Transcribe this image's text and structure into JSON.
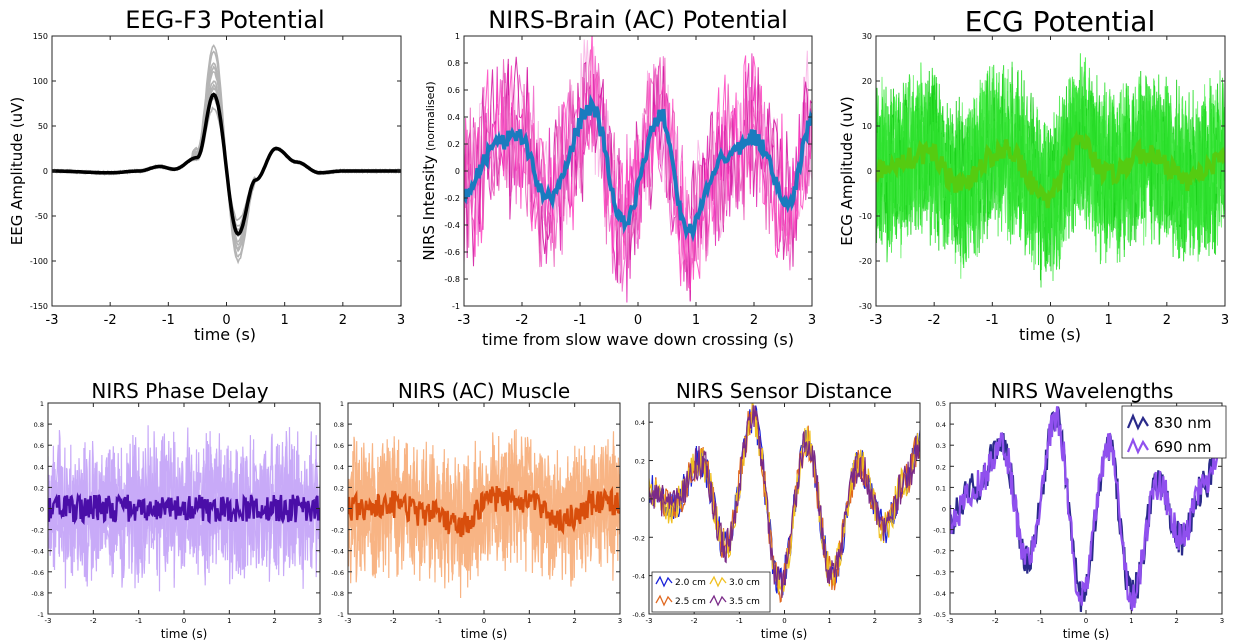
{
  "chart_data": [
    {
      "id": "eeg",
      "type": "line",
      "title": "EEG-F3 Potential",
      "xlabel": "time (s)",
      "ylabel": "EEG Amplitude (uV)",
      "xlim": [
        -3,
        3
      ],
      "ylim": [
        -150,
        150
      ],
      "xticks": [
        -3,
        -2,
        -1,
        0,
        1,
        2,
        3
      ],
      "yticks": [
        -150,
        -100,
        -50,
        0,
        50,
        100,
        150
      ],
      "grid": false,
      "colors": {
        "trials": "#b4b4b4",
        "mean": "#000000"
      },
      "trial_peaks": [
        {
          "pos": 70,
          "neg": -55
        },
        {
          "pos": 80,
          "neg": -62
        },
        {
          "pos": 92,
          "neg": -72
        },
        {
          "pos": 100,
          "neg": -78
        },
        {
          "pos": 110,
          "neg": -82
        },
        {
          "pos": 120,
          "neg": -88
        },
        {
          "pos": 132,
          "neg": -95
        },
        {
          "pos": 140,
          "neg": -100
        },
        {
          "pos": 95,
          "neg": -66
        },
        {
          "pos": 115,
          "neg": -85
        }
      ],
      "mean_keypoints": {
        "x": [
          -3,
          -2,
          -1.5,
          -1.15,
          -0.9,
          -0.5,
          -0.22,
          0.2,
          0.5,
          0.85,
          1.2,
          1.6,
          2.0,
          3
        ],
        "y": [
          0,
          -2,
          0,
          5,
          2,
          15,
          85,
          -70,
          -10,
          25,
          10,
          -2,
          0,
          0
        ]
      }
    },
    {
      "id": "nirs_brain",
      "type": "line",
      "title": "NIRS-Brain (AC) Potential",
      "xlabel": "time from slow wave down crossing (s)",
      "ylabel": "NIRS Intensity",
      "ylabel_suffix": "(normalised)",
      "xlim": [
        -3,
        3
      ],
      "ylim": [
        -1,
        1
      ],
      "xticks": [
        -3,
        -2,
        -1,
        0,
        1,
        2,
        3
      ],
      "yticks": [
        -1,
        -0.8,
        -0.6,
        -0.4,
        -0.2,
        0,
        0.2,
        0.4,
        0.6,
        0.8,
        1
      ],
      "grid": false,
      "colors": {
        "trials": [
          "#f060c8",
          "#e020b0",
          "#f8b0e4",
          "#d0109c",
          "#ff40c0",
          "#ea5ab8"
        ],
        "mean": "#1a7bbf"
      },
      "mean_keypoints": {
        "x": [
          -3,
          -2.4,
          -2.1,
          -1.55,
          -0.8,
          -0.25,
          0.4,
          0.85,
          1.5,
          2.0,
          2.6,
          3
        ],
        "y": [
          -0.15,
          0.2,
          0.28,
          -0.2,
          0.47,
          -0.38,
          0.42,
          -0.45,
          0.1,
          0.25,
          -0.25,
          0.38
        ]
      }
    },
    {
      "id": "ecg",
      "type": "line",
      "title": "ECG Potential",
      "xlabel": "time (s)",
      "ylabel": "ECG Amplitude (uV)",
      "xlim": [
        -3,
        3
      ],
      "ylim": [
        -30,
        30
      ],
      "xticks": [
        -3,
        -2,
        -1,
        0,
        1,
        2,
        3
      ],
      "yticks": [
        -30,
        -20,
        -10,
        0,
        10,
        20,
        30
      ],
      "grid": false,
      "colors": {
        "trials": [
          "#33ee33",
          "#22dd22",
          "#66f266",
          "#11cc11",
          "#44e844",
          "#2be02b"
        ],
        "mean": "#55cc11"
      },
      "mean_keypoints": {
        "x": [
          -3,
          -2.1,
          -1.6,
          -0.8,
          -0.05,
          0.5,
          1.0,
          1.6,
          2.4,
          3
        ],
        "y": [
          0,
          4,
          -3,
          5,
          -6,
          6,
          -1,
          4,
          -2,
          2
        ]
      }
    },
    {
      "id": "phase",
      "type": "line",
      "title": "NIRS Phase Delay",
      "xlabel": "time (s)",
      "ylabel": "",
      "xlim": [
        -3,
        3
      ],
      "ylim": [
        -1,
        1
      ],
      "xticks": [
        -3,
        -2,
        -1,
        0,
        1,
        2,
        3
      ],
      "yticks": [
        -1,
        -0.8,
        -0.6,
        -0.4,
        -0.2,
        0,
        0.2,
        0.4,
        0.6,
        0.8,
        1
      ],
      "grid": false,
      "colors": {
        "band": "#c8aaf8",
        "mean": "#4a0ea8"
      },
      "band_amplitude": 0.55,
      "mean_keypoints": {
        "x": [
          -3,
          3
        ],
        "y": [
          0,
          0
        ]
      }
    },
    {
      "id": "muscle",
      "type": "line",
      "title": "NIRS (AC) Muscle",
      "xlabel": "time (s)",
      "ylabel": "",
      "xlim": [
        -3,
        3
      ],
      "ylim": [
        -1,
        1
      ],
      "xticks": [
        -3,
        -2,
        -1,
        0,
        1,
        2,
        3
      ],
      "yticks": [
        -1,
        -0.8,
        -0.6,
        -0.4,
        -0.2,
        0,
        0.2,
        0.4,
        0.6,
        0.8,
        1
      ],
      "grid": false,
      "colors": {
        "band": "#f8b484",
        "mean": "#d84e0c"
      },
      "band_amplitude": 0.5,
      "mean_keypoints": {
        "x": [
          -3,
          -2.2,
          -1.2,
          -0.5,
          0.2,
          1.0,
          1.8,
          2.4,
          3
        ],
        "y": [
          0,
          0.05,
          -0.05,
          -0.15,
          0.1,
          0.05,
          -0.1,
          0.05,
          0.05
        ]
      }
    },
    {
      "id": "distance",
      "type": "line",
      "title": "NIRS Sensor Distance",
      "xlabel": "time (s)",
      "ylabel": "",
      "xlim": [
        -3,
        3
      ],
      "ylim": [
        -0.6,
        0.5
      ],
      "xticks": [
        -3,
        -2,
        -1,
        0,
        1,
        2,
        3
      ],
      "yticks": [
        -0.6,
        -0.4,
        -0.2,
        0,
        0.2,
        0.4
      ],
      "grid": false,
      "mean_keypoints": {
        "x": [
          -3,
          -2.5,
          -1.85,
          -1.3,
          -0.7,
          -0.1,
          0.5,
          1.05,
          1.65,
          2.2,
          2.7,
          3
        ],
        "y": [
          0.05,
          -0.05,
          0.2,
          -0.25,
          0.42,
          -0.45,
          0.3,
          -0.4,
          0.18,
          -0.15,
          0.1,
          0.3
        ]
      },
      "series": [
        {
          "name": "2.0 cm",
          "color": "#1a22d8"
        },
        {
          "name": "2.5 cm",
          "color": "#e06820"
        },
        {
          "name": "3.0 cm",
          "color": "#f0c020"
        },
        {
          "name": "3.5 cm",
          "color": "#7a2a88"
        }
      ],
      "legend": "bottom-left"
    },
    {
      "id": "wavelengths",
      "type": "line",
      "title": "NIRS Wavelengths",
      "xlabel": "time (s)",
      "ylabel": "",
      "xlim": [
        -3,
        3
      ],
      "ylim": [
        -0.5,
        0.5
      ],
      "xticks": [
        -3,
        -2,
        -1,
        0,
        1,
        2,
        3
      ],
      "yticks": [
        -0.5,
        -0.4,
        -0.3,
        -0.2,
        -0.1,
        0,
        0.1,
        0.2,
        0.3,
        0.4,
        0.5
      ],
      "grid": false,
      "mean_keypoints": {
        "x": [
          -3,
          -2.45,
          -1.85,
          -1.3,
          -0.65,
          -0.1,
          0.5,
          1.0,
          1.6,
          2.1,
          2.6,
          3
        ],
        "y": [
          -0.05,
          0.1,
          0.3,
          -0.25,
          0.42,
          -0.42,
          0.3,
          -0.42,
          0.12,
          -0.15,
          0.1,
          0.33
        ]
      },
      "series": [
        {
          "name": "830 nm",
          "color": "#2a2a8a"
        },
        {
          "name": "690 nm",
          "color": "#9050ee"
        }
      ],
      "legend": "top-right"
    }
  ]
}
